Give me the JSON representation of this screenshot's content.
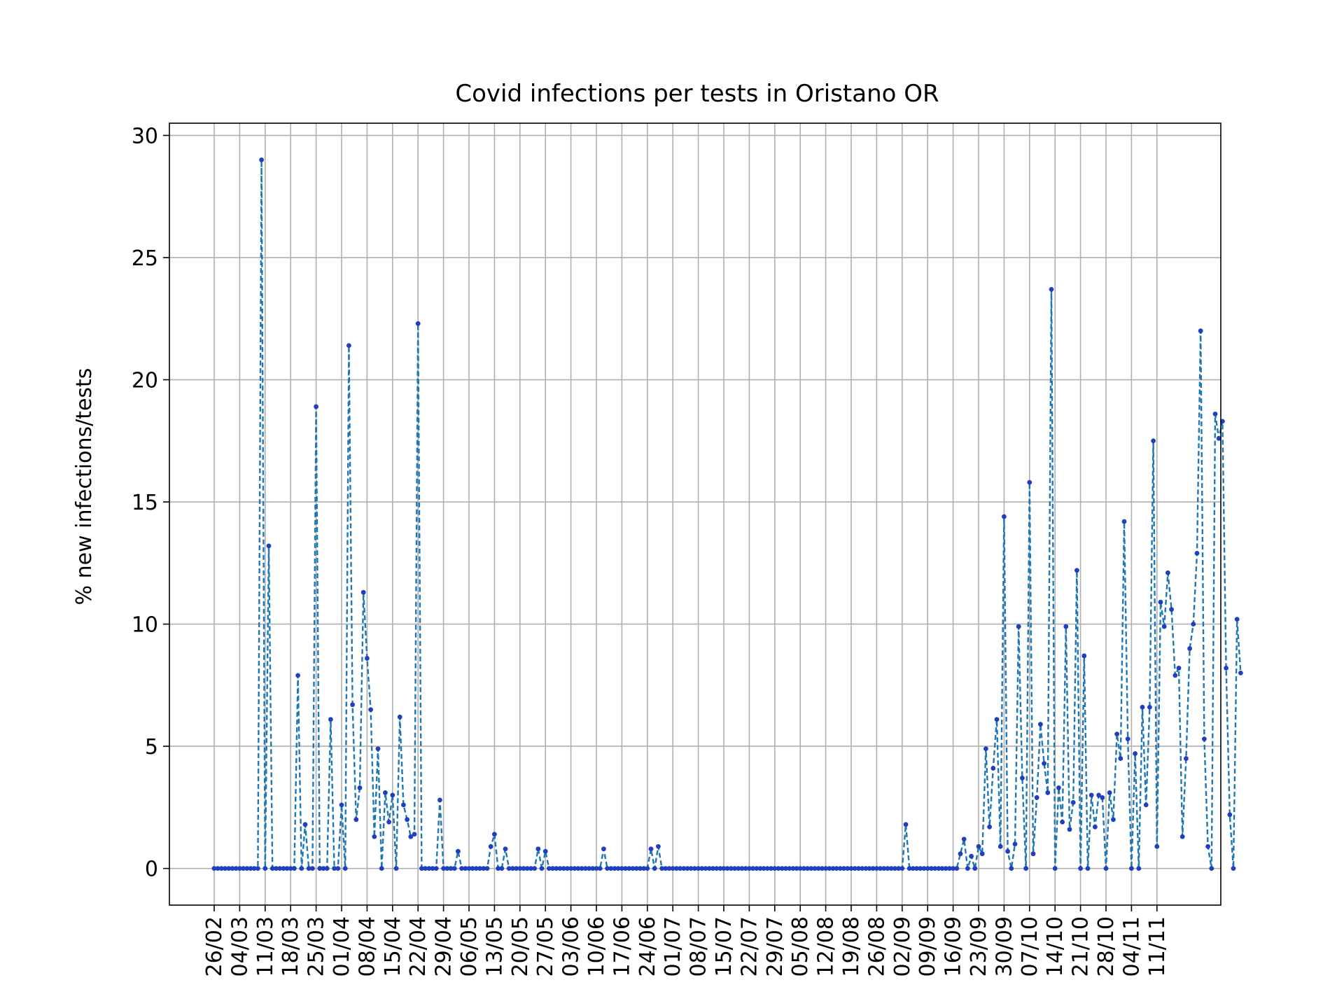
{
  "chart_data": {
    "type": "line",
    "title": "Covid infections per tests in Oristano OR",
    "xlabel": "",
    "ylabel": "% new infections/tests",
    "ylim": [
      -1.5,
      30.5
    ],
    "yticks": [
      0,
      5,
      10,
      15,
      20,
      25,
      30
    ],
    "grid": true,
    "line_style": "dashed",
    "colors": {
      "line": "#1f77b4",
      "marker": "#1f3fbf"
    },
    "xtick_labels": [
      "26/02",
      "04/03",
      "11/03",
      "18/03",
      "25/03",
      "01/04",
      "08/04",
      "15/04",
      "22/04",
      "29/04",
      "06/05",
      "13/05",
      "20/05",
      "27/05",
      "03/06",
      "10/06",
      "17/06",
      "24/06",
      "01/07",
      "08/07",
      "15/07",
      "22/07",
      "29/07",
      "05/08",
      "12/08",
      "19/08",
      "26/08",
      "02/09",
      "09/09",
      "16/09",
      "23/09",
      "30/09",
      "07/10",
      "14/10",
      "21/10",
      "28/10",
      "04/11",
      "11/11"
    ],
    "x_start": "2020-02-26",
    "values": [
      0,
      0,
      0,
      0,
      0,
      0,
      0,
      0,
      0,
      0,
      0,
      0,
      0,
      29.0,
      0,
      13.2,
      0,
      0,
      0,
      0,
      0,
      0,
      0,
      7.9,
      0,
      1.8,
      0,
      0,
      18.9,
      0,
      0,
      0,
      6.1,
      0,
      0,
      2.6,
      0,
      21.4,
      6.7,
      2.0,
      3.3,
      11.3,
      8.6,
      6.5,
      1.3,
      4.9,
      0,
      3.1,
      1.9,
      3.0,
      0,
      6.2,
      2.6,
      2.0,
      1.3,
      1.4,
      22.3,
      0,
      0,
      0,
      0,
      0,
      2.8,
      0,
      0,
      0,
      0,
      0.7,
      0,
      0,
      0,
      0,
      0,
      0,
      0,
      0,
      0.9,
      1.4,
      0,
      0,
      0.8,
      0,
      0,
      0,
      0,
      0,
      0,
      0,
      0,
      0.8,
      0,
      0.7,
      0,
      0,
      0,
      0,
      0,
      0,
      0,
      0,
      0,
      0,
      0,
      0,
      0,
      0,
      0,
      0.8,
      0,
      0,
      0,
      0,
      0,
      0,
      0,
      0,
      0,
      0,
      0,
      0,
      0.8,
      0,
      0.9,
      0,
      0,
      0,
      0,
      0,
      0,
      0,
      0,
      0,
      0,
      0,
      0,
      0,
      0,
      0,
      0,
      0,
      0,
      0,
      0,
      0,
      0,
      0,
      0,
      0,
      0,
      0,
      0,
      0,
      0,
      0,
      0,
      0,
      0,
      0,
      0,
      0,
      0,
      0,
      0,
      0,
      0,
      0,
      0,
      0,
      0,
      0,
      0,
      0,
      0,
      0,
      0,
      0,
      0,
      0,
      0,
      0,
      0,
      0,
      0,
      0,
      0,
      0,
      0,
      0,
      0,
      0,
      1.8,
      0,
      0,
      0,
      0,
      0,
      0,
      0,
      0,
      0,
      0,
      0,
      0,
      0,
      0,
      0.6,
      1.2,
      0,
      0.5,
      0,
      0.9,
      0.6,
      4.9,
      1.7,
      4.1,
      6.1,
      0.9,
      14.4,
      0.7,
      0,
      1.0,
      9.9,
      3.7,
      0,
      15.8,
      0.6,
      2.9,
      5.9,
      4.3,
      3.1,
      23.7,
      0,
      3.3,
      1.9,
      9.9,
      1.6,
      2.7,
      12.2,
      0,
      8.7,
      0,
      3.0,
      1.7,
      3.0,
      2.9,
      0,
      3.1,
      2.0,
      5.5,
      4.5,
      14.2,
      5.3,
      0,
      4.7,
      0,
      6.6,
      2.6,
      6.6,
      17.5,
      0.9,
      10.9,
      9.9,
      12.1,
      10.6,
      7.9,
      8.2,
      1.3,
      4.5,
      9.0,
      10.0,
      12.9,
      22.0,
      5.3,
      0.9,
      0,
      18.6,
      17.6,
      18.3,
      8.2,
      2.2,
      0,
      10.2,
      8.0
    ]
  }
}
